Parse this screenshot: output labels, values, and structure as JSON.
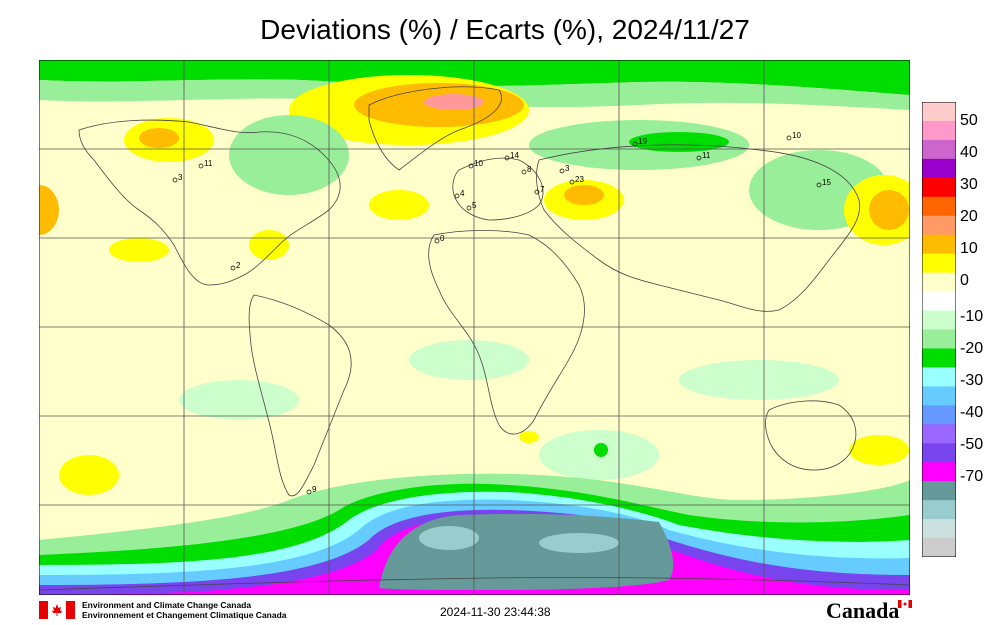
{
  "title": "Deviations (%) / Ecarts (%), 2024/11/27",
  "legend": {
    "labels": [
      "50",
      "40",
      "30",
      "20",
      "10",
      "0",
      "-10",
      "-20",
      "-30",
      "-40",
      "-50",
      "-70"
    ],
    "colors": [
      "#ffcccc",
      "#ff99cc",
      "#cc66cc",
      "#9900cc",
      "#ff0000",
      "#ff6600",
      "#ff9966",
      "#ffbb00",
      "#ffff00",
      "#ffffcc",
      "#ffffff",
      "#ccffcc",
      "#99ee99",
      "#00dd00",
      "#99ffff",
      "#66ccff",
      "#6699ff",
      "#9966ff",
      "#7744ee",
      "#ff00ff",
      "#669999",
      "#99cccc",
      "#cce0e0",
      "#cccccc"
    ]
  },
  "stations": [
    {
      "label": "11",
      "color": "#000000"
    },
    {
      "label": "3",
      "color": "#000000"
    },
    {
      "label": "2",
      "color": "#000000"
    },
    {
      "label": "0",
      "color": "#000000"
    },
    {
      "label": "10",
      "color": "#000000"
    },
    {
      "label": "14",
      "color": "#000000"
    },
    {
      "label": "4",
      "color": "#000000"
    },
    {
      "label": "8",
      "color": "#000000"
    },
    {
      "label": "7",
      "color": "#000000"
    },
    {
      "label": "3",
      "color": "#000000"
    },
    {
      "label": "23",
      "color": "#000000"
    },
    {
      "label": "5",
      "color": "#000000"
    },
    {
      "label": "19",
      "color": "#000000"
    },
    {
      "label": "11",
      "color": "#000000"
    },
    {
      "label": "10",
      "color": "#000000"
    },
    {
      "label": "15",
      "color": "#000000"
    },
    {
      "label": "9",
      "color": "#000000"
    }
  ],
  "footer": {
    "org_en": "Environment and Climate Change Canada",
    "org_fr": "Environnement et Changement Climatique Canada",
    "timestamp": "2024-11-30 23:44:38",
    "wordmark": "Canada"
  }
}
